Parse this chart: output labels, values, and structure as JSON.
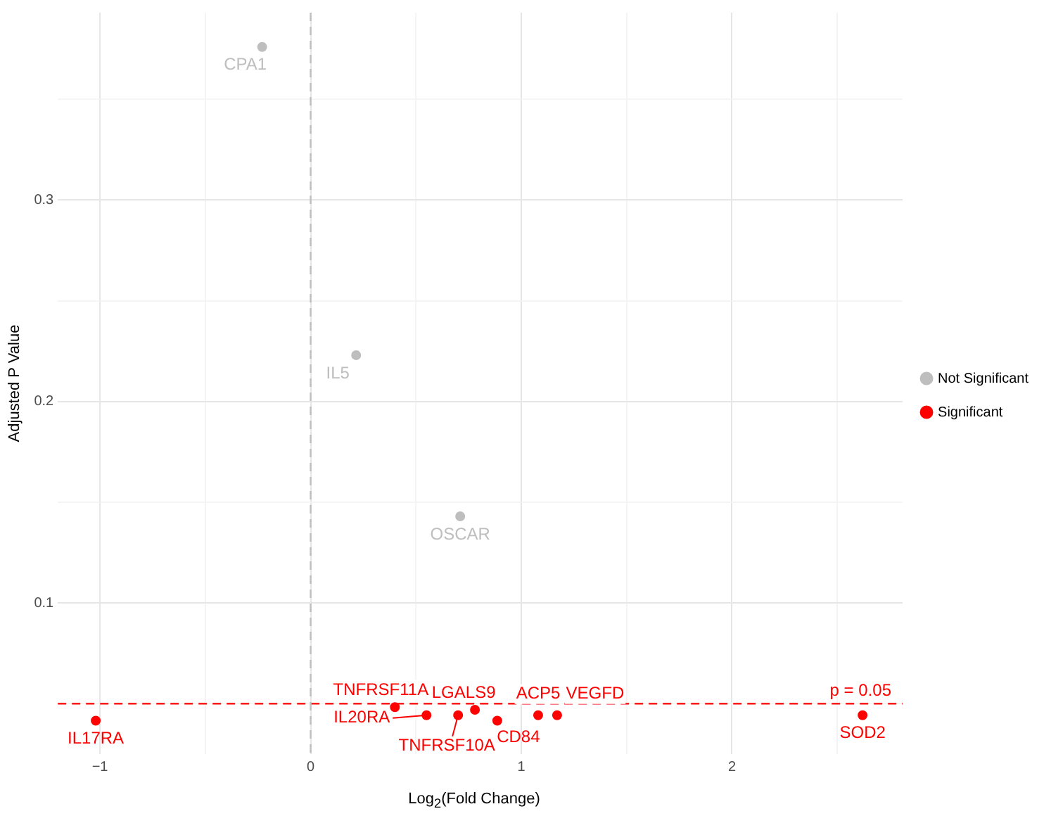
{
  "chart_data": {
    "type": "scatter",
    "xlabel": "Log$_{2}$(Fold Change)",
    "ylabel": "Adjusted P Value",
    "series": [
      {
        "name": "Not Significant",
        "color": "#bebebe",
        "x": [
          -0.23,
          0.216,
          0.71
        ],
        "values": [
          0.376,
          0.223,
          0.143
        ],
        "value_labels": [
          "CPA1",
          "IL5",
          "OSCAR"
        ]
      },
      {
        "name": "Significant",
        "color": "#ff0000",
        "x": [
          -1.02,
          0.4,
          0.55,
          0.7,
          0.78,
          0.886,
          1.08,
          1.17,
          2.62
        ],
        "values": [
          0.0416,
          0.0483,
          0.0443,
          0.0443,
          0.047,
          0.0416,
          0.0443,
          0.0443,
          0.0443
        ],
        "value_labels": [
          "IL17RA",
          "TNFRSF11A",
          "IL20RA",
          "TNFRSF10A",
          "LGALS9",
          "CD84",
          "ACP5",
          "VEGFD",
          "SOD2"
        ]
      }
    ],
    "xlim": [
      -1.2,
      2.81
    ],
    "ylim": [
      0.025,
      0.393
    ],
    "xticks": [
      {
        "value": -1,
        "label": "−1"
      },
      {
        "value": -0.5,
        "label": null
      },
      0,
      {
        "value": 0.5,
        "label": null
      },
      1,
      {
        "value": 1.5,
        "label": null
      },
      2,
      {
        "value": 2.5,
        "label": null
      }
    ],
    "yticks": [
      {
        "value": 0.05,
        "label": null
      },
      0.1,
      {
        "value": 0.15,
        "label": null
      },
      0.2,
      {
        "value": 0.25,
        "label": null
      },
      0.3,
      {
        "value": 0.35,
        "label": null
      }
    ],
    "ref_lines": [
      {
        "axis": "y",
        "value": 0.05,
        "label": "p = 0.05",
        "color": "#ff0000",
        "line_style": "dashed"
      },
      {
        "axis": "x",
        "value": 0,
        "color": "#bebebe",
        "line_style": "dashed"
      }
    ],
    "grid": true,
    "legend": "right",
    "marker": "circle"
  }
}
